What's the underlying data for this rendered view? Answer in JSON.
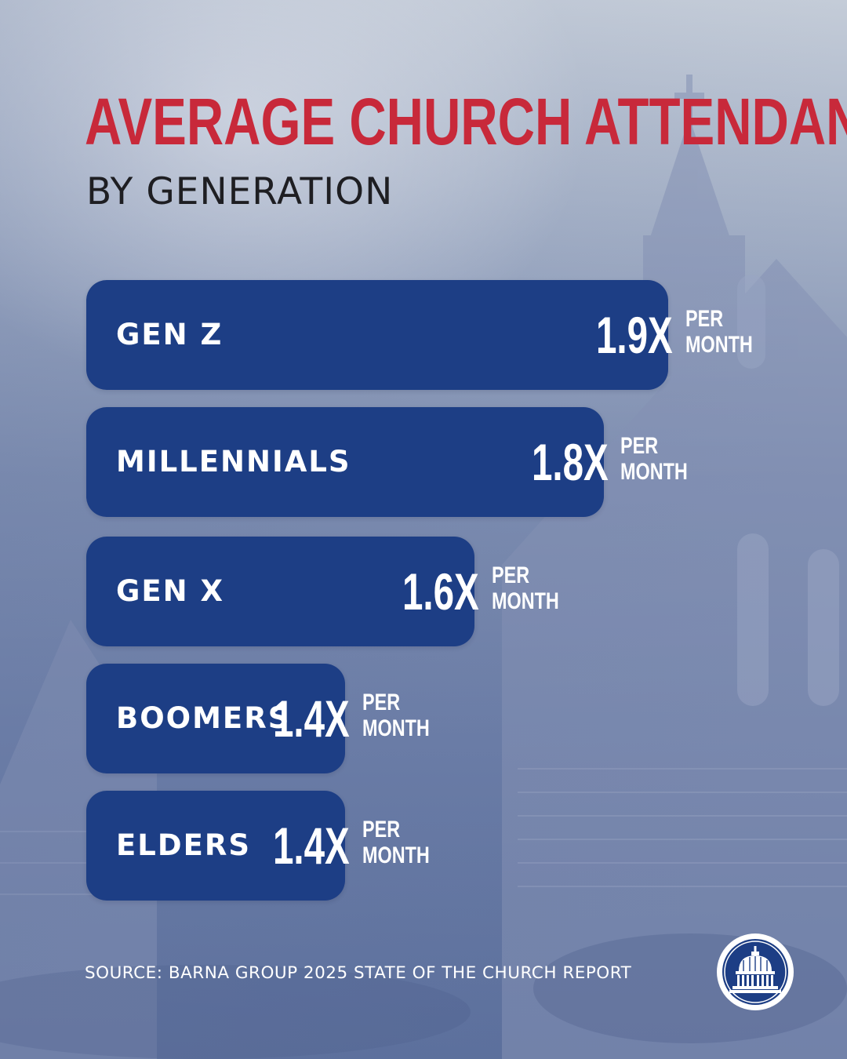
{
  "chart_data": {
    "type": "bar",
    "orientation": "horizontal",
    "title": "AVERAGE CHURCH ATTENDANCE",
    "subtitle": "BY GENERATION",
    "unit": [
      "PER",
      "MONTH"
    ],
    "categories": [
      "GEN Z",
      "MILLENNIALS",
      "GEN X",
      "BOOMERS",
      "ELDERS"
    ],
    "values": [
      1.9,
      1.8,
      1.6,
      1.4,
      1.4
    ],
    "value_labels": [
      "1.9X",
      "1.8X",
      "1.6X",
      "1.4X",
      "1.4X"
    ],
    "xlabel": "",
    "ylabel": "",
    "colors": {
      "bar": "#1d3e85",
      "title": "#c8293a",
      "subtitle": "#1e1e22",
      "text": "#ffffff"
    }
  },
  "footer": {
    "source": "SOURCE: BARNA GROUP 2025 STATE OF THE CHURCH REPORT",
    "logo_icon": "capitol-dome-icon"
  }
}
